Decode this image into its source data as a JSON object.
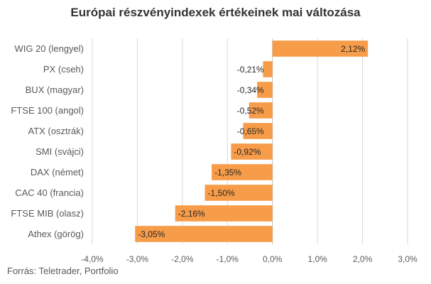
{
  "title": "Európai részvényindexek értékeinek mai változása",
  "source": "Forrás: Teletrader, Portfolio",
  "colors": {
    "bar": "#F79C48",
    "grid": "#D9D9D9",
    "axis": "#BFBFBF"
  },
  "chart_data": {
    "type": "bar",
    "orientation": "horizontal",
    "title": "Európai részvényindexek értékeinek mai változása",
    "categories": [
      "WIG 20 (lengyel)",
      "PX (cseh)",
      "BUX (magyar)",
      "FTSE 100 (angol)",
      "ATX (osztrák)",
      "SMI (svájci)",
      "DAX (német)",
      "CAC 40 (francia)",
      "FTSE MIB (olasz)",
      "Athex (görög)"
    ],
    "values": [
      2.12,
      -0.21,
      -0.34,
      -0.52,
      -0.65,
      -0.92,
      -1.35,
      -1.5,
      -2.16,
      -3.05
    ],
    "value_labels": [
      "2,12%",
      "-0,21%",
      "-0,34%",
      "-0,52%",
      "-0,65%",
      "-0,92%",
      "-1,35%",
      "-1,50%",
      "-2,16%",
      "-3,05%"
    ],
    "xlim": [
      -4,
      3
    ],
    "x_ticks": [
      -4,
      -3,
      -2,
      -1,
      0,
      1,
      2,
      3
    ],
    "x_tick_labels": [
      "-4,0%",
      "-3,0%",
      "-2,0%",
      "-1,0%",
      "0,0%",
      "1,0%",
      "2,0%",
      "3,0%"
    ],
    "grid": true,
    "legend": "none"
  }
}
